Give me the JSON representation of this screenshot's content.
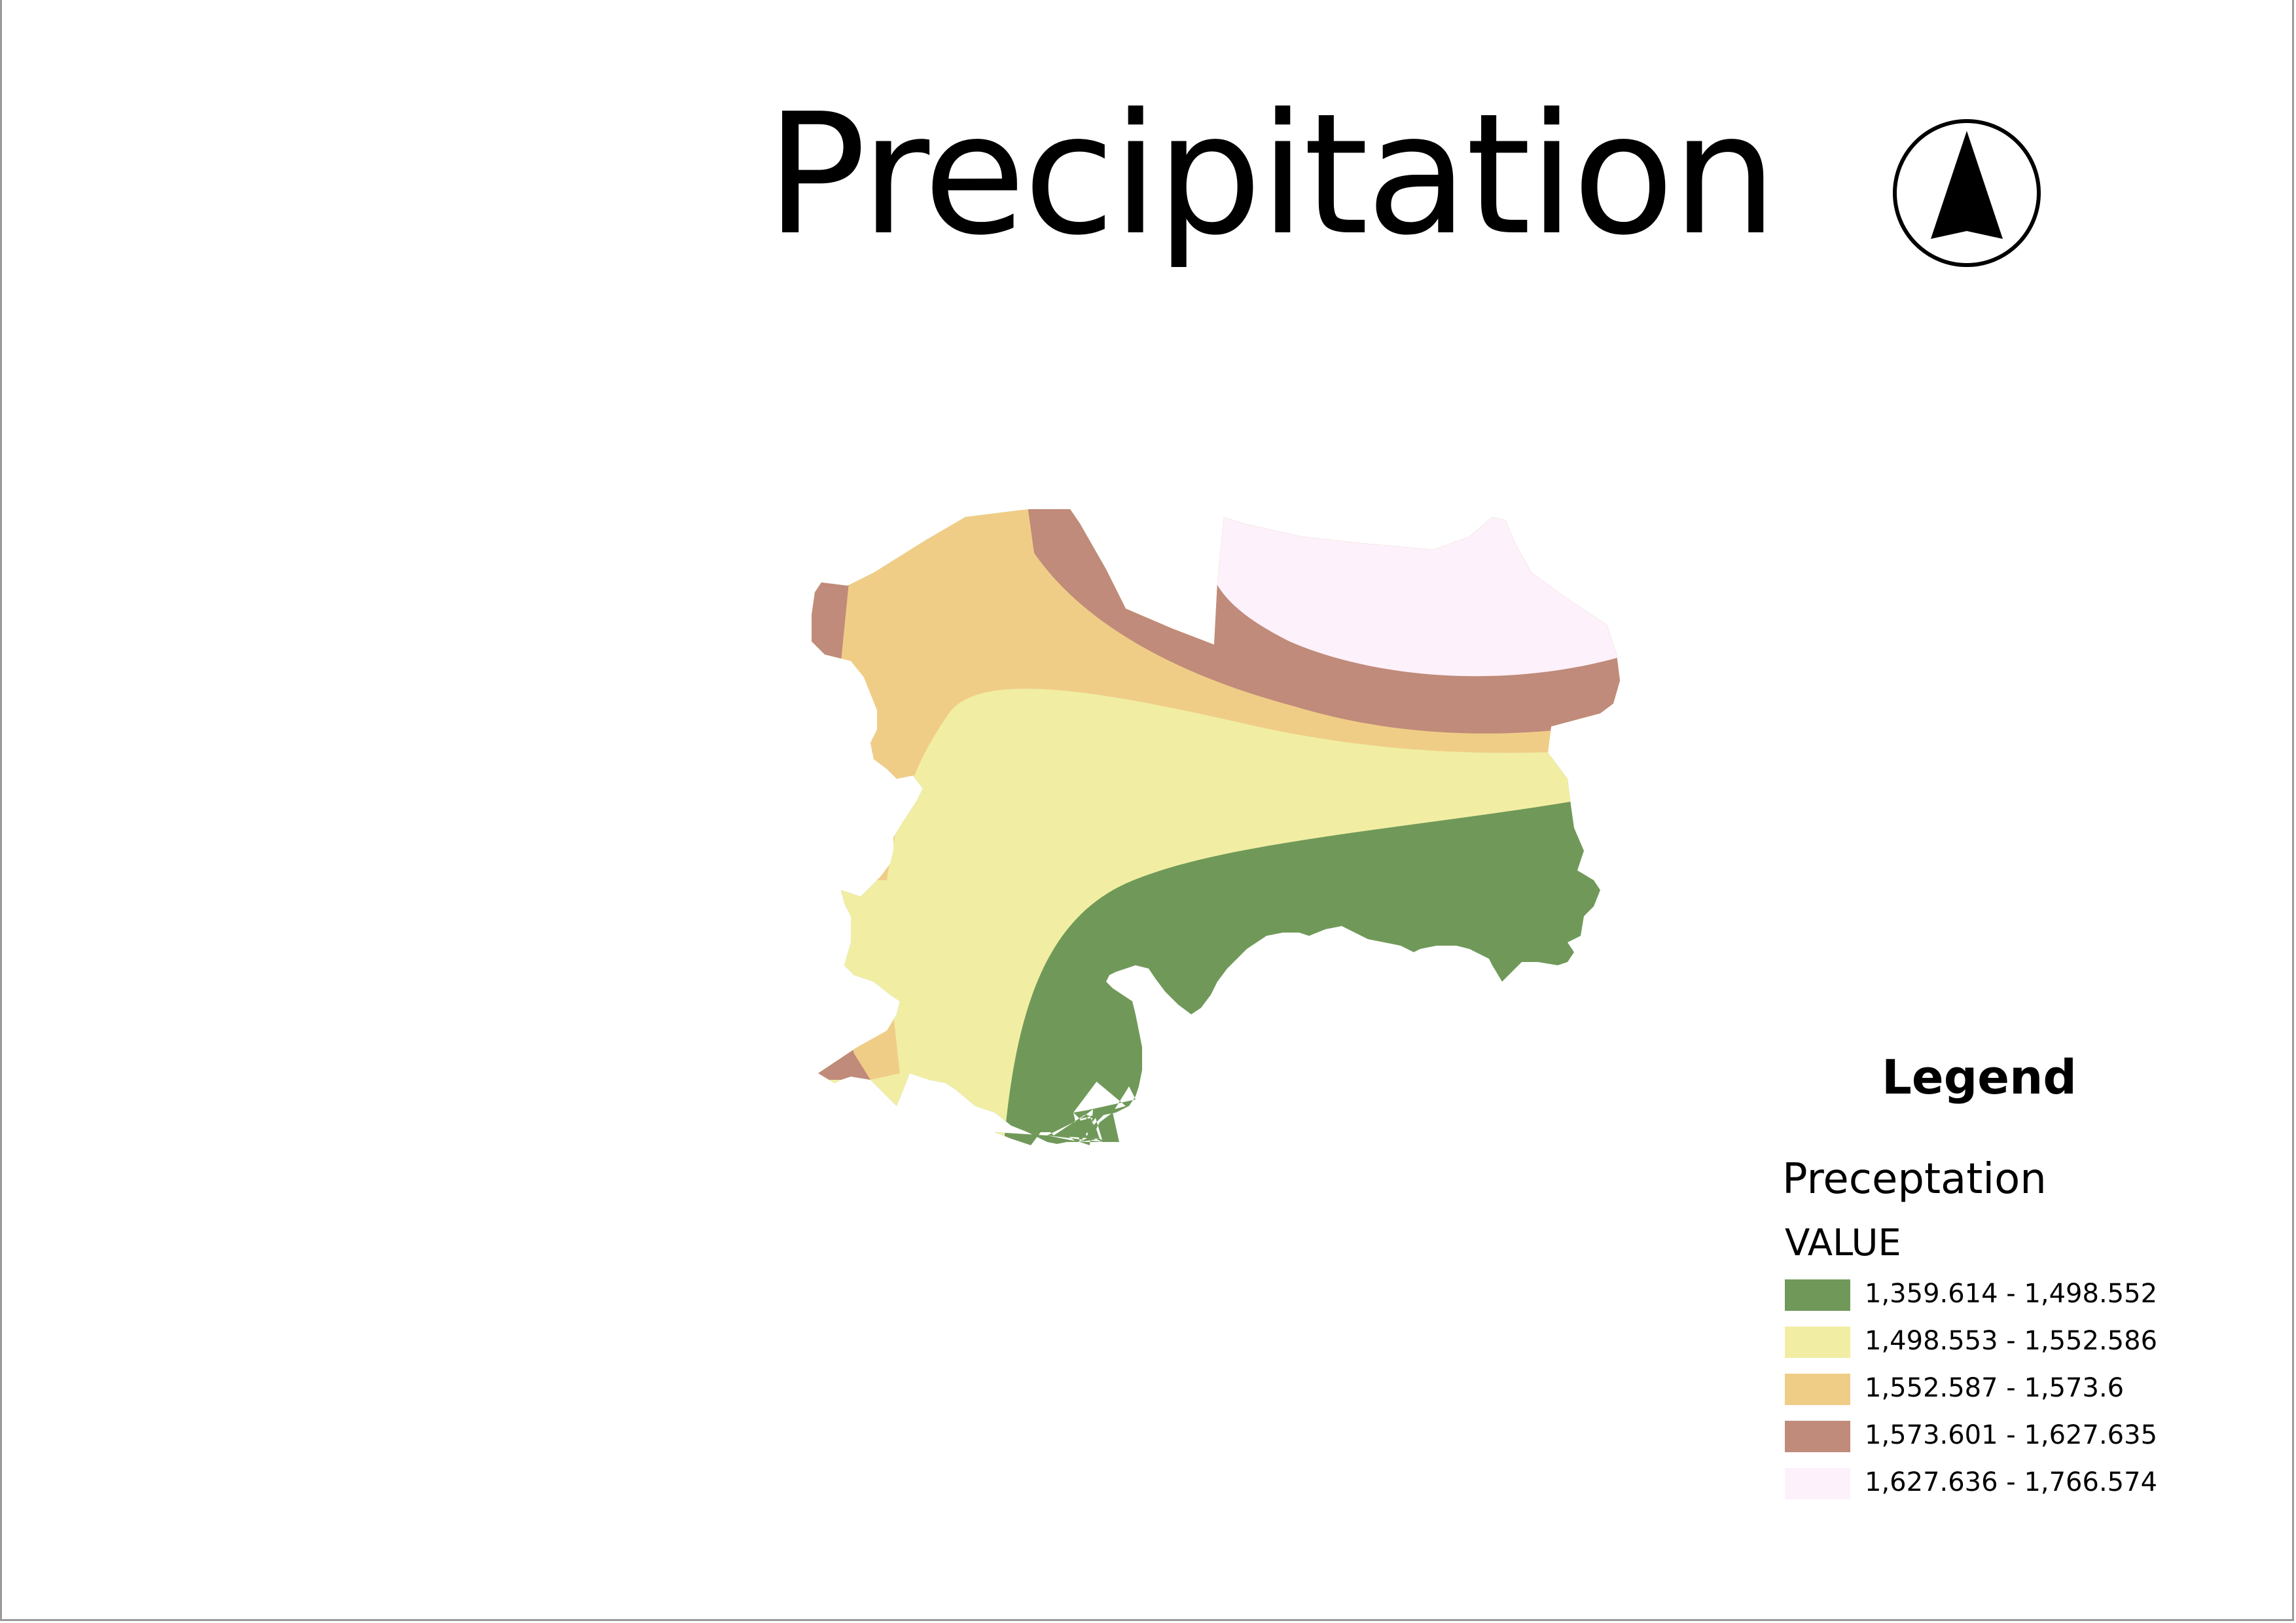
{
  "map": {
    "title": "Precipitation",
    "north_arrow_icon": "north-arrow-icon"
  },
  "legend": {
    "title": "Legend",
    "layer_name": "Preceptation",
    "field_name": "VALUE",
    "classes": [
      {
        "label": "1,359.614 - 1,498.552",
        "color": "#709959"
      },
      {
        "label": "1,498.553 - 1,552.586",
        "color": "#f1eea3"
      },
      {
        "label": "1,552.587 - 1,573.6",
        "color": "#f0cd87"
      },
      {
        "label": "1,573.601 - 1,627.635",
        "color": "#c08b7a"
      },
      {
        "label": "1,627.636 - 1,766.574",
        "color": "#fdf1fb"
      }
    ]
  }
}
